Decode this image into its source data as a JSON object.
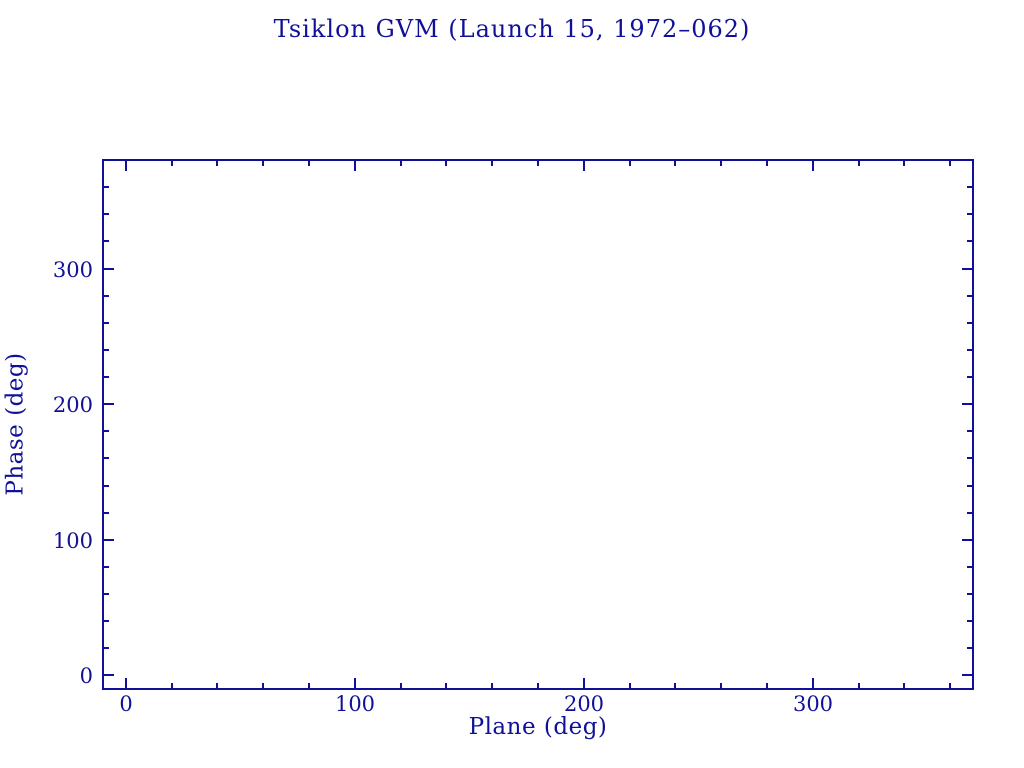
{
  "page": {
    "background_color": "#ffffff",
    "accent_color": "#101099"
  },
  "chart_data": {
    "type": "scatter",
    "title": "Tsiklon GVM (Launch 15, 1972–062)",
    "xlabel": "Plane (deg)",
    "ylabel": "Phase (deg)",
    "xlim": [
      -10,
      370
    ],
    "ylim": [
      -10,
      380
    ],
    "xticks_major": [
      0,
      100,
      200,
      300
    ],
    "xticks_minor": [
      20,
      40,
      60,
      80,
      120,
      140,
      160,
      180,
      220,
      240,
      260,
      280,
      320,
      340,
      360
    ],
    "yticks_major": [
      0,
      100,
      200,
      300
    ],
    "yticks_minor": [
      20,
      40,
      60,
      80,
      120,
      140,
      160,
      180,
      220,
      240,
      260,
      280,
      320,
      340,
      360
    ],
    "grid": false,
    "legend": "none",
    "frame": "rectangular box, inward ticks mirrored on all four sides",
    "series": []
  }
}
